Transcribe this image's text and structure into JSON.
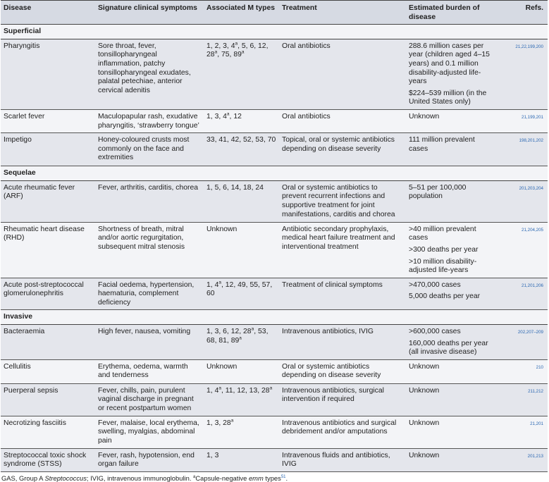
{
  "headers": [
    "Disease",
    "Signature clinical symptoms",
    "Associated M types",
    "Treatment",
    "Estimated burden of disease",
    "Refs."
  ],
  "rows": [
    {
      "section": "Superficial"
    },
    {
      "disease": "Pharyngitis",
      "symptoms": "Sore throat, fever, tonsillopharyngeal inflammation, patchy tonsillopharyngeal exudates, palatal petechiae, anterior cervical adenitis",
      "mtypes": [
        {
          "n": "1"
        },
        {
          "n": "2"
        },
        {
          "n": "3"
        },
        {
          "n": "4",
          "sup": "a"
        },
        {
          "n": "5"
        },
        {
          "n": "6"
        },
        {
          "n": "12"
        },
        {
          "n": "28",
          "sup": "a"
        },
        {
          "n": "75"
        },
        {
          "n": "89",
          "sup": "a"
        }
      ],
      "treatment": "Oral antibiotics",
      "burden": [
        "288.6 million cases per year (children aged 4–15 years) and 0.1 million disability-adjusted life-years",
        "$224–539 million (in the United States only)"
      ],
      "refs": "21,22,199,200",
      "shade": "dark",
      "h": 80
    },
    {
      "disease": "Scarlet fever",
      "symptoms": "Maculopapular rash, exudative pharyngitis, ‘strawberry tongue’",
      "mtypes": [
        {
          "n": "1"
        },
        {
          "n": "3"
        },
        {
          "n": "4",
          "sup": "a"
        },
        {
          "n": "12"
        }
      ],
      "treatment": "Oral antibiotics",
      "burden": [
        "Unknown"
      ],
      "refs": "21,199,201",
      "shade": "light",
      "h": 25
    },
    {
      "disease": "Impetigo",
      "symptoms": "Honey-coloured crusts most commonly on the face and extremities",
      "mtypes": [
        {
          "n": "33"
        },
        {
          "n": "41"
        },
        {
          "n": "42"
        },
        {
          "n": "52"
        },
        {
          "n": "53"
        },
        {
          "n": "70"
        }
      ],
      "treatment": "Topical, oral or systemic antibiotics depending on disease severity",
      "burden": [
        "111 million prevalent cases"
      ],
      "refs": "198,201,202",
      "shade": "dark",
      "h": 39
    },
    {
      "section": "Sequelae"
    },
    {
      "disease": "Acute rheumatic fever (ARF)",
      "symptoms": "Fever, arthritis, carditis, chorea",
      "mtypes": [
        {
          "n": "1"
        },
        {
          "n": "5"
        },
        {
          "n": "6"
        },
        {
          "n": "14"
        },
        {
          "n": "18"
        },
        {
          "n": "24"
        }
      ],
      "treatment": "Oral or systemic antibiotics to prevent recurrent infections and supportive treatment for joint manifestations, carditis and chorea",
      "burden": [
        "5–51 per 100,000 population"
      ],
      "refs": "201,203,204",
      "shade": "dark",
      "h": 51
    },
    {
      "disease": "Rheumatic heart disease (RHD)",
      "symptoms": "Shortness of breath, mitral and/or aortic regurgitation, subsequent mitral stenosis",
      "mtypes": [
        {
          "n": "Unknown"
        }
      ],
      "treatment": "Antibiotic secondary prophylaxis, medical heart failure treatment and interventional treatment",
      "burden": [
        ">40 million prevalent cases",
        ">300 deaths per year",
        ">10 million disability-adjusted life-years"
      ],
      "refs": "21,204,205",
      "shade": "light",
      "h": 55
    },
    {
      "disease": "Acute post-streptococcal glomerulonephritis",
      "symptoms": "Facial oedema, hypertension, haematuria, complement deficiency",
      "mtypes": [
        {
          "n": "1"
        },
        {
          "n": "4",
          "sup": "a"
        },
        {
          "n": "12"
        },
        {
          "n": "49"
        },
        {
          "n": "55"
        },
        {
          "n": "57"
        },
        {
          "n": "60"
        }
      ],
      "treatment": "Treatment of clinical symptoms",
      "burden": [
        ">470,000 cases",
        "5,000 deaths per year"
      ],
      "refs": "21,201,206",
      "shade": "dark",
      "h": 32
    },
    {
      "section": "Invasive"
    },
    {
      "disease": "Bacteraemia",
      "symptoms": "High fever, nausea, vomiting",
      "mtypes": [
        {
          "n": "1"
        },
        {
          "n": "3"
        },
        {
          "n": "6"
        },
        {
          "n": "12"
        },
        {
          "n": "28",
          "sup": "a"
        },
        {
          "n": "53"
        },
        {
          "n": "68"
        },
        {
          "n": "81"
        },
        {
          "n": "89",
          "sup": "a"
        }
      ],
      "treatment": "Intravenous antibiotics, IVIG",
      "burden": [
        ">600,000 cases",
        "160,000 deaths per year (all invasive disease)"
      ],
      "refs": "202,207–209",
      "shade": "dark",
      "h": 41
    },
    {
      "disease": "Cellulitis",
      "symptoms": "Erythema, oedema, warmth and tenderness",
      "mtypes": [
        {
          "n": "Unknown"
        }
      ],
      "treatment": "Oral or systemic antibiotics depending on disease severity",
      "burden": [
        "Unknown"
      ],
      "refs": "210",
      "shade": "light",
      "h": 26
    },
    {
      "disease": "Puerperal sepsis",
      "symptoms": "Fever, chills, pain, purulent vaginal discharge in pregnant or recent postpartum women",
      "mtypes": [
        {
          "n": "1"
        },
        {
          "n": "4",
          "sup": "a"
        },
        {
          "n": "11"
        },
        {
          "n": "12"
        },
        {
          "n": "13"
        },
        {
          "n": "28",
          "sup": "a"
        }
      ],
      "treatment": "Intravenous antibiotics, surgical intervention if required",
      "burden": [
        "Unknown"
      ],
      "refs": "211,212",
      "shade": "dark",
      "h": 38
    },
    {
      "disease": "Necrotizing fasciitis",
      "symptoms": "Fever, malaise, local erythema, swelling, myalgias, abdominal pain",
      "mtypes": [
        {
          "n": "1"
        },
        {
          "n": "3"
        },
        {
          "n": "28",
          "sup": "a"
        }
      ],
      "treatment": "Intravenous antibiotics and surgical debridement and/or amputations",
      "burden": [
        "Unknown"
      ],
      "refs": "21,201",
      "shade": "light",
      "h": 26
    },
    {
      "disease": "Streptococcal toxic shock syndrome (STSS)",
      "symptoms": "Fever, rash, hypotension, end organ failure",
      "mtypes": [
        {
          "n": "1"
        },
        {
          "n": "3"
        }
      ],
      "treatment": "Intravenous fluids and antibiotics, IVIG",
      "burden": [
        "Unknown"
      ],
      "refs": "201,213",
      "shade": "dark",
      "h": 22
    }
  ],
  "footer": [
    {
      "t": "GAS, Group A "
    },
    {
      "t": "Streptococcus",
      "i": true
    },
    {
      "t": "; IVIG, intravenous immunoglobulin. "
    },
    {
      "t": "a",
      "sup": true
    },
    {
      "t": "Capsule-negative "
    },
    {
      "t": "emm",
      "i": true
    },
    {
      "t": " types"
    },
    {
      "t": "51",
      "sup": true,
      "ref": true
    },
    {
      "t": "."
    }
  ],
  "colors": {
    "header_bg": "#d6dae3",
    "row_dark": "#e4e6ec",
    "row_light": "#f3f4f7",
    "ref_link": "#2a67b2"
  }
}
